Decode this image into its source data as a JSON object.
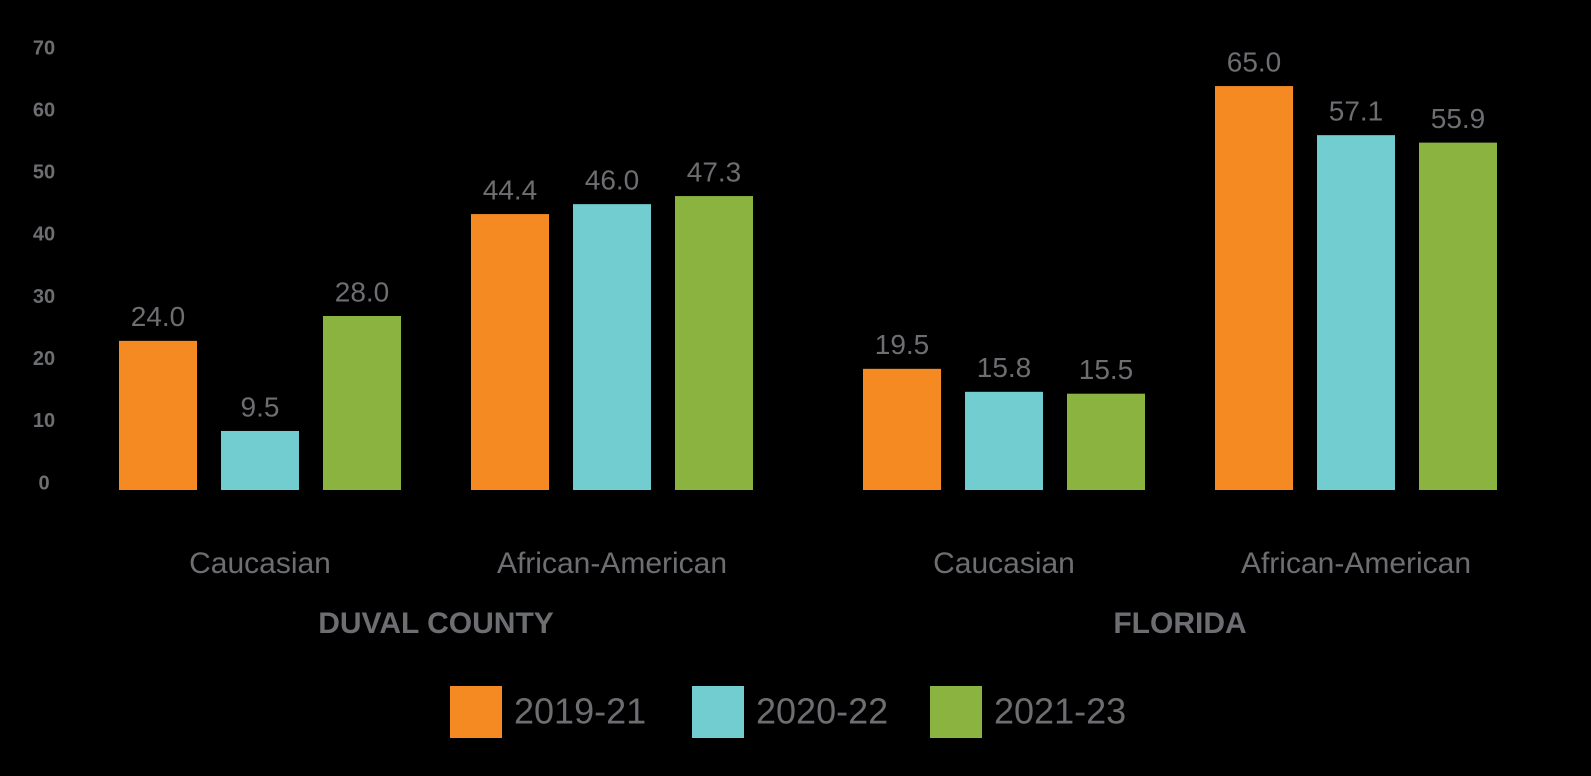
{
  "chart_data": {
    "type": "bar",
    "categories": [
      "Caucasian",
      "African-American",
      "Caucasian",
      "African-American"
    ],
    "groups": [
      "DUVAL COUNTY",
      "FLORIDA"
    ],
    "series": [
      {
        "name": "2019-21",
        "color": "#f58a23",
        "values": [
          24.0,
          44.4,
          19.5,
          65.0
        ],
        "value_labels": [
          "24.0",
          "44.4",
          "19.5",
          "65.0"
        ]
      },
      {
        "name": "2020-22",
        "color": "#72cdd0",
        "values": [
          9.5,
          46.0,
          15.8,
          57.1
        ],
        "value_labels": [
          "9.5",
          "46.0",
          "15.8",
          "57.1"
        ]
      },
      {
        "name": "2021-23",
        "color": "#8ab43f",
        "values": [
          28.0,
          47.3,
          15.5,
          55.9
        ],
        "value_labels": [
          "28.0",
          "47.3",
          "15.5",
          "55.9"
        ]
      }
    ],
    "ylim": [
      0,
      70
    ],
    "yticks": [
      0,
      10,
      20,
      30,
      40,
      50,
      60,
      70
    ],
    "grid": false
  }
}
